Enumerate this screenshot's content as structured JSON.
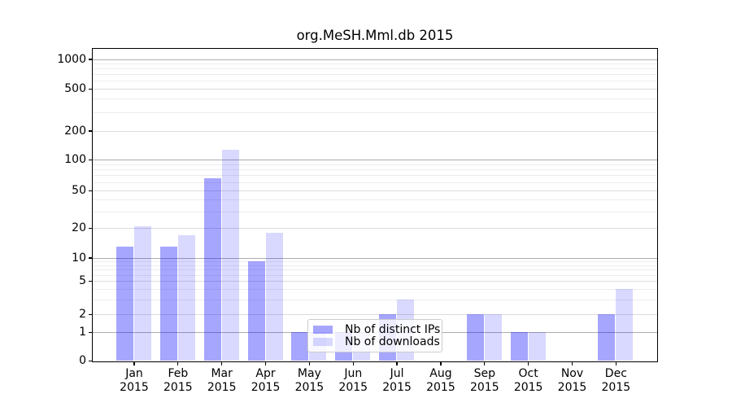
{
  "chart_data": {
    "type": "bar",
    "title": "org.MeSH.Mml.db 2015",
    "categories": [
      {
        "month": "Jan",
        "year": "2015"
      },
      {
        "month": "Feb",
        "year": "2015"
      },
      {
        "month": "Mar",
        "year": "2015"
      },
      {
        "month": "Apr",
        "year": "2015"
      },
      {
        "month": "May",
        "year": "2015"
      },
      {
        "month": "Jun",
        "year": "2015"
      },
      {
        "month": "Jul",
        "year": "2015"
      },
      {
        "month": "Aug",
        "year": "2015"
      },
      {
        "month": "Sep",
        "year": "2015"
      },
      {
        "month": "Oct",
        "year": "2015"
      },
      {
        "month": "Nov",
        "year": "2015"
      },
      {
        "month": "Dec",
        "year": "2015"
      }
    ],
    "series": [
      {
        "name": "Nb of distinct IPs",
        "color": "rgba(0,0,255,0.35)",
        "values": [
          13,
          13,
          66,
          9,
          1,
          1,
          2,
          0,
          2,
          1,
          0,
          2
        ]
      },
      {
        "name": "Nb of downloads",
        "color": "rgba(0,0,255,0.15)",
        "values": [
          21,
          17,
          125,
          18,
          1,
          1,
          3,
          0,
          2,
          1,
          0,
          4
        ]
      }
    ],
    "yscale": "symlog",
    "ylim": [
      0,
      1300
    ],
    "yticks": [
      0,
      1,
      2,
      5,
      10,
      20,
      50,
      100,
      200,
      500,
      1000
    ],
    "grid": "horizontal major + log minor gridlines",
    "legend_position": "lower center"
  },
  "colors": {
    "bar_distinct_ips": "rgba(0,0,255,0.35)",
    "bar_downloads": "rgba(0,0,255,0.15)",
    "grid_dark": "#adadad",
    "grid_mid": "#dcdcdc",
    "grid_minor": "#ededed",
    "legend_border": "#cccccc",
    "axis": "#000000"
  }
}
